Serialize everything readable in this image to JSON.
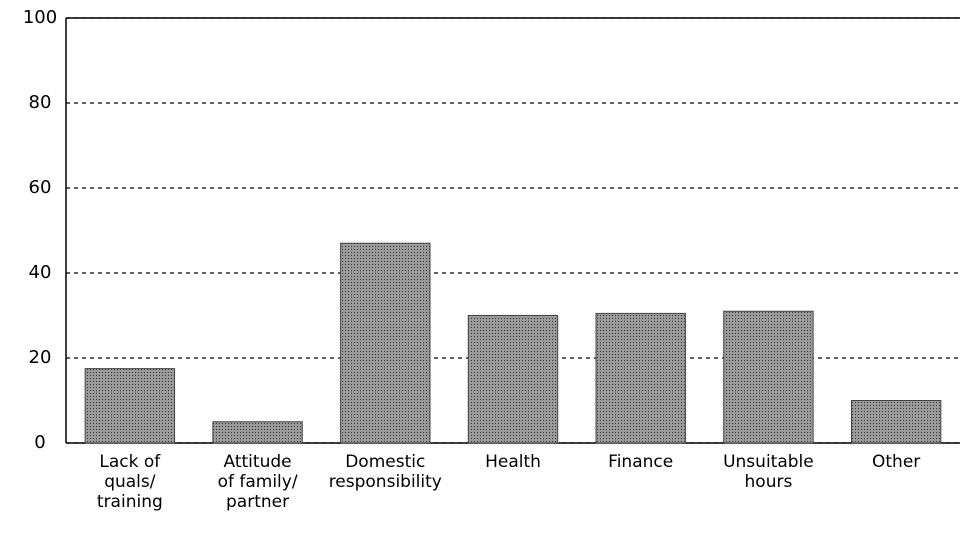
{
  "chart_data": {
    "type": "bar",
    "categories": [
      "Lack of\nquals/\ntraining",
      "Attitude\nof family/\npartner",
      "Domestic\nresponsibility",
      "Health",
      "Finance",
      "Unsuitable\nhours",
      "Other"
    ],
    "values": [
      17.5,
      5,
      47,
      30,
      30.5,
      31,
      10
    ],
    "color": "#858585",
    "ylim": [
      0,
      100
    ],
    "yticks": [
      0,
      20,
      40,
      60,
      80,
      100
    ],
    "grid": true
  }
}
